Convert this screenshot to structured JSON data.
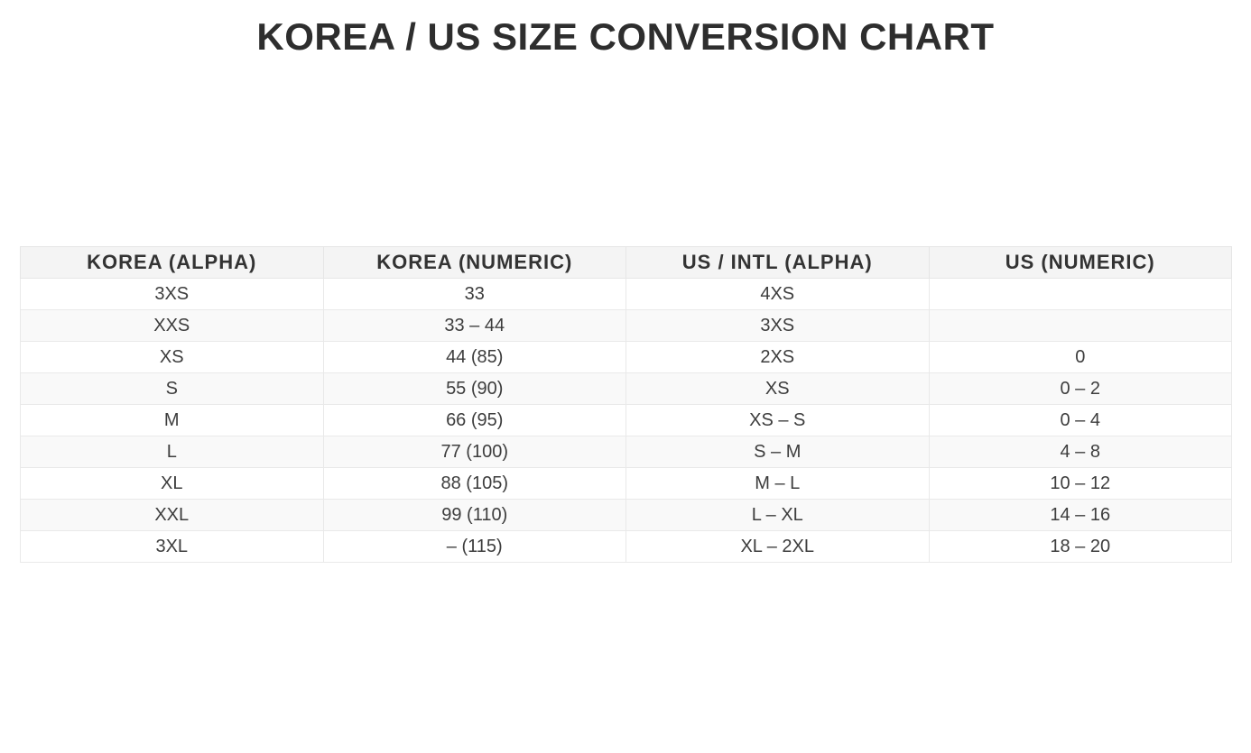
{
  "page": {
    "title": "KOREA / US SIZE CONVERSION CHART"
  },
  "table": {
    "columns": [
      "KOREA (ALPHA)",
      "KOREA (NUMERIC)",
      "US / INTL (ALPHA)",
      "US (NUMERIC)"
    ],
    "rows": [
      [
        "3XS",
        "33",
        "4XS",
        ""
      ],
      [
        "XXS",
        "33 – 44",
        "3XS",
        ""
      ],
      [
        "XS",
        "44 (85)",
        "2XS",
        "0"
      ],
      [
        "S",
        "55 (90)",
        "XS",
        "0 – 2"
      ],
      [
        "M",
        "66 (95)",
        "XS – S",
        "0 – 4"
      ],
      [
        "L",
        "77 (100)",
        "S – M",
        "4 – 8"
      ],
      [
        "XL",
        "88 (105)",
        "M – L",
        "10 – 12"
      ],
      [
        "XXL",
        "99 (110)",
        "L – XL",
        "14 – 16"
      ],
      [
        "3XL",
        "– (115)",
        "XL – 2XL",
        "18 – 20"
      ]
    ]
  },
  "colors": {
    "background": "#ffffff",
    "title_text": "#2e2e2e",
    "header_bg": "#f4f4f4",
    "row_alt_bg": "#f9f9f9",
    "border": "#e9e9e9",
    "cell_text": "#3d3d3d"
  }
}
